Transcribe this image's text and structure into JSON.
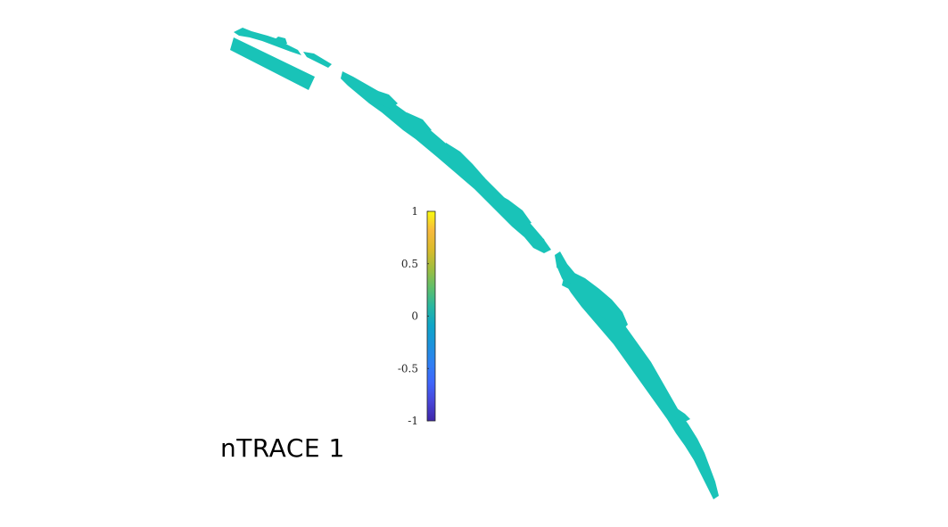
{
  "caption": "nTRACE 1",
  "shape_color": "#19c3b8",
  "colorbar": {
    "colormap": "parula",
    "range": [
      -1,
      1
    ],
    "ticks": [
      1,
      0.5,
      0,
      -0.5,
      -1
    ],
    "tick_labels": [
      "1",
      "0.5",
      "0",
      "-0.5",
      "-1"
    ],
    "stops": [
      "#f9fb0e",
      "#f8ba3d",
      "#dbbb2b",
      "#a0bd3e",
      "#5fbf6a",
      "#27b7a1",
      "#0ea5c8",
      "#1b93dc",
      "#2f7ff3",
      "#3f65fb",
      "#4845d8",
      "#3e26a8"
    ]
  }
}
